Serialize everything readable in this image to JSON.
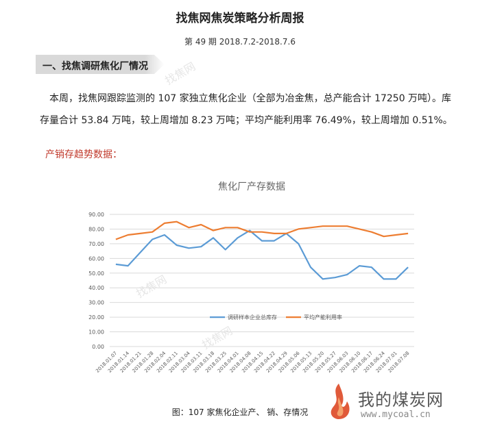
{
  "document": {
    "title": "找焦网焦炭策略分析周报",
    "issue": "第 49 期  2018.7.2-2018.7.6",
    "section_title": "一、找焦调研焦化厂情况",
    "paragraph": "本周，找焦网跟踪监测的 107 家独立焦化企业（全部为冶金焦，总产能合计 17250 万吨）。库存量合计 53.84 万吨，较上周增加 8.23 万吨；平均产能利用率 76.49%，较上周增加 0.51%。",
    "subheading": "产销存趋势数据：",
    "caption": "图：107 家焦化企业产、 销、存情况"
  },
  "watermark": {
    "text": "找焦网"
  },
  "brand": {
    "name": "我的煤炭网",
    "url": "www.mycoal.cn"
  },
  "chart_data": {
    "type": "line",
    "title": "焦化厂产存数据",
    "xlabel": "",
    "ylabel": "",
    "ylim": [
      0,
      90
    ],
    "yticks": [
      "0.00",
      "10.00",
      "20.00",
      "30.00",
      "40.00",
      "50.00",
      "60.00",
      "70.00",
      "80.00",
      "90.00"
    ],
    "grid": true,
    "legend_position": "inside-lower-center",
    "categories": [
      "2018.01.07",
      "2018.01.14",
      "2018.01.21",
      "2018.01.28",
      "2018.02.04",
      "2018.02.11",
      "2018.03.04",
      "2018.03.11",
      "2018.03.18",
      "2018.03.25",
      "2018.04.01",
      "2018.04.08",
      "2018.04.15",
      "2018.04.22",
      "2018.04.29",
      "2018.05.06",
      "2018.05.13",
      "2018.05.20",
      "2018.05.27",
      "2018.06.03",
      "2018.06.10",
      "2018.06.17",
      "2018.06.24",
      "2018.07.01",
      "2018.07.08"
    ],
    "series": [
      {
        "name": "调研样本企业总库存",
        "color": "#5b9bd5",
        "values": [
          56,
          55,
          64,
          73,
          76,
          69,
          67,
          68,
          74,
          66,
          74,
          79,
          72,
          72,
          77,
          70,
          54,
          46,
          47,
          49,
          55,
          54,
          46,
          46,
          54
        ]
      },
      {
        "name": "平均产能利用率",
        "color": "#ed7d31",
        "values": [
          73,
          76,
          77,
          78,
          84,
          85,
          81,
          83,
          79,
          81,
          81,
          78,
          78,
          77,
          77,
          80,
          81,
          82,
          82,
          82,
          80,
          78,
          75,
          76,
          77
        ]
      }
    ]
  }
}
